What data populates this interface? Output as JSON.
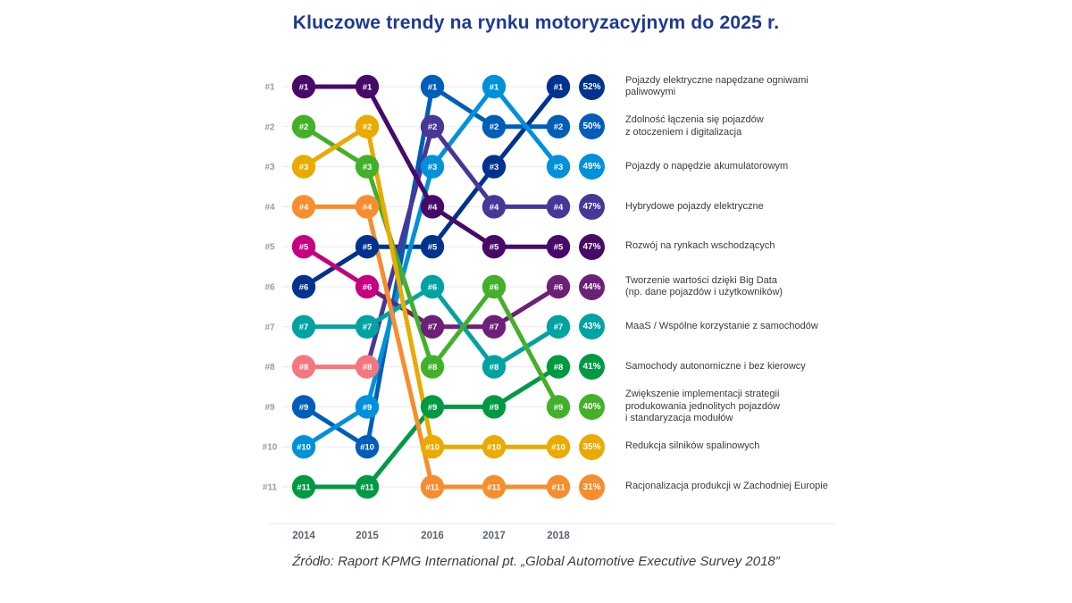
{
  "title": "Kluczowe trendy na rynku motoryzacyjnym do 2025 r.",
  "source": "Źródło: Raport KPMG International pt. „Global Automotive Executive Survey 2018”",
  "chart_data": {
    "type": "bump",
    "title": "Kluczowe trendy na rynku motoryzacyjnym do 2025 r.",
    "years": [
      "2014",
      "2015",
      "2016",
      "2017",
      "2018"
    ],
    "rank_labels": [
      "#1",
      "#2",
      "#3",
      "#4",
      "#5",
      "#6",
      "#7",
      "#8",
      "#9",
      "#10",
      "#11"
    ],
    "rank_range": [
      1,
      11
    ],
    "legend_position": "right",
    "grid": true,
    "trends": [
      {
        "label": "Pojazdy elektryczne napędzane ogniwami\npaliwowymi",
        "pct": "52%",
        "color": "#00338D",
        "ranks": [
          6,
          5,
          5,
          3,
          1
        ]
      },
      {
        "label": "Zdolność łączenia się pojazdów\nz otoczeniem i digitalizacja",
        "pct": "50%",
        "color": "#005EB8",
        "ranks": [
          9,
          10,
          1,
          2,
          2
        ]
      },
      {
        "label": "Pojazdy o napędzie akumulatorowym",
        "pct": "49%",
        "color": "#0091DA",
        "ranks": [
          10,
          9,
          3,
          1,
          3
        ]
      },
      {
        "label": "Hybrydowe pojazdy elektryczne",
        "pct": "47%",
        "color": "#483698",
        "node_colors": [
          "#F4777F",
          "#F4777F",
          "#483698",
          "#483698",
          "#483698"
        ],
        "ranks": [
          8,
          8,
          2,
          4,
          4
        ]
      },
      {
        "label": "Rozwój na rynkach wschodzących",
        "pct": "47%",
        "color": "#470A68",
        "ranks": [
          1,
          1,
          4,
          5,
          5
        ]
      },
      {
        "label": "Tworzenie wartości dzięki Big Data\n(np. dane pojazdów i użytkowników)",
        "pct": "44%",
        "color": "#6D2077",
        "node_colors": [
          "#C6007E",
          "#C6007E",
          "#6D2077",
          "#6D2077",
          "#6D2077"
        ],
        "ranks": [
          5,
          6,
          7,
          7,
          6
        ]
      },
      {
        "label": "MaaS / Wspólne korzystanie z samochodów",
        "pct": "43%",
        "color": "#00A3A1",
        "ranks": [
          7,
          7,
          6,
          8,
          7
        ]
      },
      {
        "label": "Samochody autonomiczne i bez kierowcy",
        "pct": "41%",
        "color": "#009A44",
        "ranks": [
          11,
          11,
          9,
          9,
          8
        ]
      },
      {
        "label": "Zwiększenie implementacji strategii\nprodukowania jednolitych pojazdów\ni standaryzacja modułów",
        "pct": "40%",
        "color": "#43B02A",
        "ranks": [
          2,
          3,
          8,
          6,
          9
        ]
      },
      {
        "label": "Redukcja silników spalinowych",
        "pct": "35%",
        "color": "#EAAA00",
        "ranks": [
          3,
          2,
          10,
          10,
          10
        ]
      },
      {
        "label": "Racjonalizacja produkcji w Zachodniej Europie",
        "pct": "31%",
        "color": "#F68D2E",
        "ranks": [
          4,
          4,
          11,
          11,
          11
        ]
      }
    ]
  }
}
